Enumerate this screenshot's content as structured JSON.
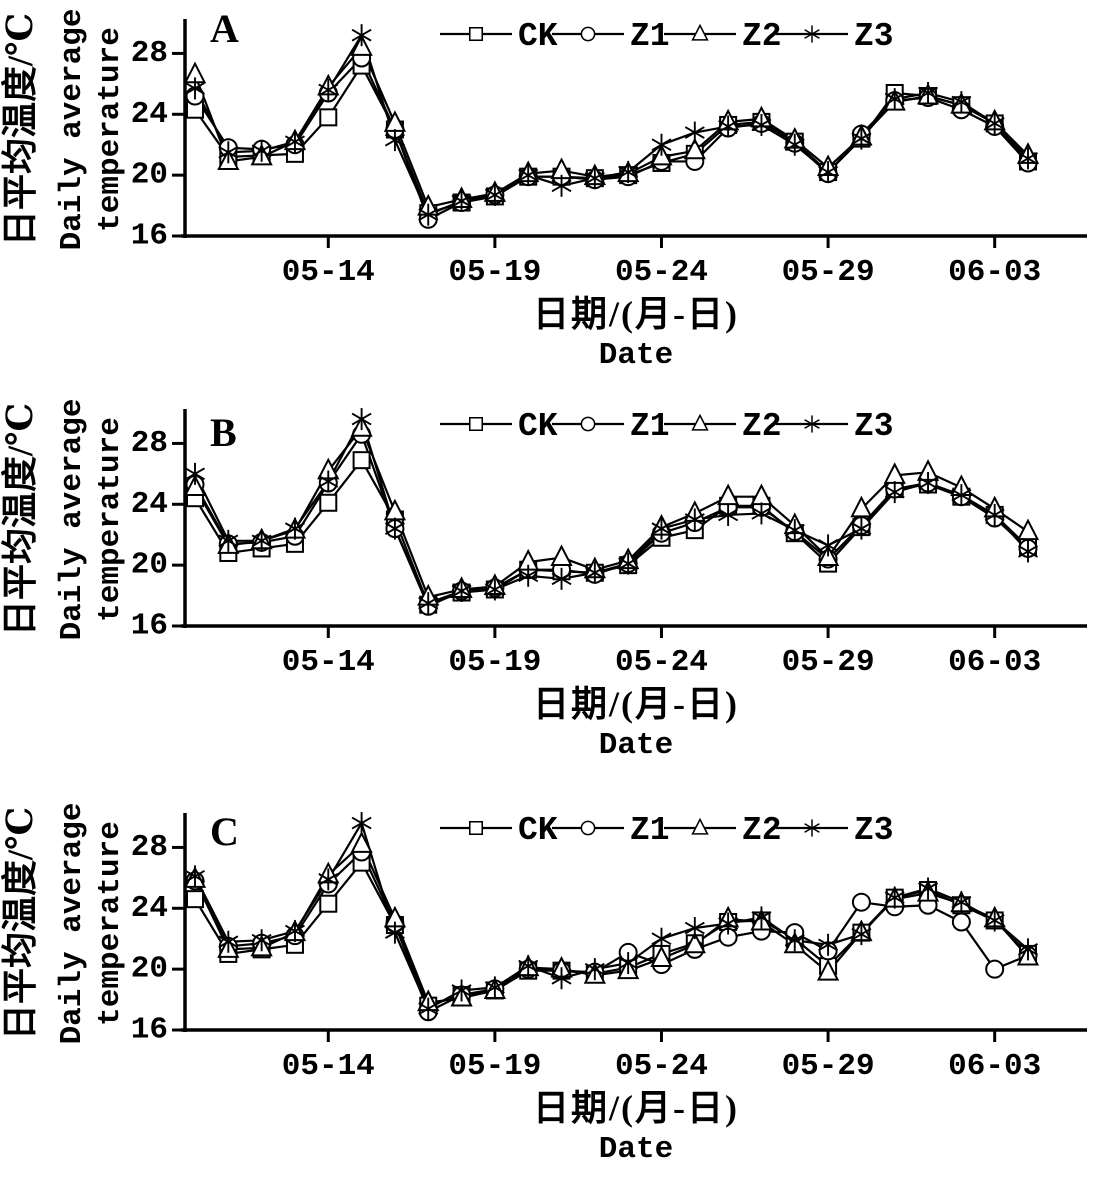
{
  "figure": {
    "background": "#ffffff",
    "ink_color": "#000000",
    "panel_labels": [
      "A",
      "B",
      "C"
    ],
    "y_axis_label": {
      "cn": "日平均温度/℃",
      "en_line1": "Daily average",
      "en_line2": "temperature"
    },
    "x_axis_label": {
      "cn": "日期/(月-日)",
      "en": "Date"
    },
    "y_ticks": [
      16,
      20,
      24,
      28
    ],
    "x_tick_labels": [
      "05-14",
      "05-19",
      "05-24",
      "05-29",
      "06-03"
    ],
    "legend": [
      {
        "label": "CK",
        "marker": "square"
      },
      {
        "label": "Z1",
        "marker": "circle"
      },
      {
        "label": "Z2",
        "marker": "triangle"
      },
      {
        "label": "Z3",
        "marker": "star"
      }
    ]
  },
  "chart_data": [
    {
      "id": "panel-A",
      "panel_label": "A",
      "type": "line",
      "title": "",
      "xlabel_cn": "日期/(月-日)",
      "xlabel_en": "Date",
      "ylabel_cn": "日平均温度/℃",
      "ylabel_en": "Daily average temperature",
      "ylim": [
        16,
        30
      ],
      "y_ticks": [
        16,
        20,
        24,
        28
      ],
      "x": [
        "05-10",
        "05-11",
        "05-12",
        "05-13",
        "05-14",
        "05-15",
        "05-16",
        "05-17",
        "05-18",
        "05-19",
        "05-20",
        "05-21",
        "05-22",
        "05-23",
        "05-24",
        "05-25",
        "05-26",
        "05-27",
        "05-28",
        "05-29",
        "05-30",
        "05-31",
        "06-01",
        "06-02",
        "06-03",
        "06-04"
      ],
      "x_ticks_shown": [
        "05-14",
        "05-19",
        "05-24",
        "05-29",
        "06-03"
      ],
      "series": [
        {
          "name": "CK",
          "marker": "square",
          "values": [
            24.3,
            21.2,
            21.3,
            21.4,
            23.8,
            27.2,
            23.0,
            17.5,
            18.2,
            18.6,
            19.9,
            19.9,
            19.8,
            20.0,
            20.8,
            21.4,
            23.3,
            23.5,
            22.2,
            20.2,
            22.4,
            25.4,
            25.2,
            24.6,
            23.4,
            20.9
          ]
        },
        {
          "name": "Z1",
          "marker": "circle",
          "values": [
            25.2,
            21.8,
            21.7,
            22.0,
            25.4,
            27.7,
            23.0,
            17.1,
            18.2,
            18.7,
            19.9,
            19.9,
            19.7,
            19.9,
            20.9,
            20.9,
            23.1,
            23.4,
            22.1,
            20.1,
            22.7,
            24.9,
            25.1,
            24.3,
            23.2,
            20.8
          ]
        },
        {
          "name": "Z2",
          "marker": "triangle",
          "values": [
            26.6,
            20.9,
            21.2,
            22.2,
            25.8,
            28.4,
            23.4,
            17.9,
            18.4,
            18.8,
            20.1,
            20.3,
            19.9,
            20.1,
            21.2,
            21.6,
            23.5,
            23.7,
            22.3,
            20.5,
            22.5,
            24.8,
            25.2,
            24.6,
            23.5,
            21.3
          ]
        },
        {
          "name": "Z3",
          "marker": "star",
          "values": [
            25.7,
            21.5,
            21.6,
            22.2,
            25.6,
            29.2,
            22.3,
            17.4,
            18.3,
            18.7,
            20.0,
            19.3,
            19.8,
            20.2,
            22.0,
            22.8,
            23.2,
            23.3,
            22.0,
            20.2,
            22.4,
            25.0,
            25.4,
            24.8,
            23.4,
            21.1
          ]
        }
      ]
    },
    {
      "id": "panel-B",
      "panel_label": "B",
      "type": "line",
      "title": "",
      "xlabel_cn": "日期/(月-日)",
      "xlabel_en": "Date",
      "ylabel_cn": "日平均温度/℃",
      "ylabel_en": "Daily average temperature",
      "ylim": [
        16,
        30
      ],
      "y_ticks": [
        16,
        20,
        24,
        28
      ],
      "x": [
        "05-10",
        "05-11",
        "05-12",
        "05-13",
        "05-14",
        "05-15",
        "05-16",
        "05-17",
        "05-18",
        "05-19",
        "05-20",
        "05-21",
        "05-22",
        "05-23",
        "05-24",
        "05-25",
        "05-26",
        "05-27",
        "05-28",
        "05-29",
        "05-30",
        "05-31",
        "06-01",
        "06-02",
        "06-03",
        "06-04"
      ],
      "x_ticks_shown": [
        "05-14",
        "05-19",
        "05-24",
        "05-29",
        "06-03"
      ],
      "series": [
        {
          "name": "CK",
          "marker": "square",
          "values": [
            24.4,
            20.8,
            21.1,
            21.4,
            24.1,
            26.9,
            23.0,
            17.4,
            18.2,
            18.4,
            19.7,
            19.6,
            19.5,
            20.0,
            21.8,
            22.3,
            23.9,
            23.9,
            22.1,
            20.1,
            22.5,
            25.0,
            25.3,
            24.5,
            23.3,
            21.2
          ]
        },
        {
          "name": "Z1",
          "marker": "circle",
          "values": [
            25.3,
            21.4,
            21.5,
            21.9,
            25.4,
            28.6,
            22.4,
            17.3,
            18.3,
            18.5,
            19.7,
            19.7,
            19.4,
            20.1,
            22.1,
            22.8,
            23.8,
            23.8,
            22.2,
            20.4,
            22.6,
            25.0,
            25.4,
            24.5,
            23.1,
            21.1
          ]
        },
        {
          "name": "Z2",
          "marker": "triangle",
          "values": [
            25.1,
            21.3,
            21.6,
            22.3,
            26.2,
            29.0,
            23.5,
            17.9,
            18.4,
            18.6,
            20.2,
            20.5,
            19.7,
            20.3,
            22.5,
            23.4,
            24.5,
            24.5,
            22.6,
            20.5,
            23.7,
            25.9,
            26.1,
            25.1,
            23.7,
            22.2
          ]
        },
        {
          "name": "Z3",
          "marker": "star",
          "values": [
            26.0,
            21.6,
            21.6,
            22.4,
            25.5,
            29.6,
            22.4,
            17.5,
            18.3,
            18.4,
            19.3,
            19.1,
            19.5,
            20.1,
            22.4,
            23.0,
            23.3,
            23.4,
            22.3,
            21.3,
            22.4,
            24.8,
            25.4,
            24.6,
            23.3,
            20.9
          ]
        }
      ]
    },
    {
      "id": "panel-C",
      "panel_label": "C",
      "type": "line",
      "title": "",
      "xlabel_cn": "日期/(月-日)",
      "xlabel_en": "Date",
      "ylabel_cn": "日平均温度/℃",
      "ylabel_en": "Daily average temperature",
      "ylim": [
        16,
        30
      ],
      "y_ticks": [
        16,
        20,
        24,
        28
      ],
      "x": [
        "05-10",
        "05-11",
        "05-12",
        "05-13",
        "05-14",
        "05-15",
        "05-16",
        "05-17",
        "05-18",
        "05-19",
        "05-20",
        "05-21",
        "05-22",
        "05-23",
        "05-24",
        "05-25",
        "05-26",
        "05-27",
        "05-28",
        "05-29",
        "05-30",
        "05-31",
        "06-01",
        "06-02",
        "06-03",
        "06-04"
      ],
      "x_ticks_shown": [
        "05-14",
        "05-19",
        "05-24",
        "05-29",
        "06-03"
      ],
      "series": [
        {
          "name": "CK",
          "marker": "square",
          "values": [
            24.6,
            21.0,
            21.3,
            21.6,
            24.3,
            27.0,
            22.9,
            17.6,
            18.3,
            18.6,
            19.9,
            19.9,
            19.7,
            20.1,
            21.0,
            21.7,
            23.1,
            23.2,
            22.0,
            20.2,
            22.4,
            24.7,
            25.2,
            24.2,
            23.2,
            21.0
          ]
        },
        {
          "name": "Z1",
          "marker": "circle",
          "values": [
            25.8,
            21.5,
            21.7,
            22.2,
            25.6,
            27.7,
            23.0,
            17.2,
            18.3,
            18.7,
            20.0,
            19.9,
            19.8,
            21.1,
            20.3,
            21.3,
            22.1,
            22.5,
            22.4,
            21.2,
            24.4,
            24.1,
            24.2,
            23.1,
            20.0,
            20.9
          ]
        },
        {
          "name": "Z2",
          "marker": "triangle",
          "values": [
            25.9,
            21.3,
            21.4,
            22.4,
            26.2,
            28.2,
            23.3,
            17.8,
            18.1,
            18.6,
            20.1,
            20.0,
            19.6,
            19.9,
            20.7,
            21.6,
            23.3,
            23.1,
            21.6,
            19.8,
            22.4,
            24.6,
            25.0,
            24.3,
            23.3,
            20.8
          ]
        },
        {
          "name": "Z3",
          "marker": "star",
          "values": [
            26.1,
            21.8,
            21.9,
            22.5,
            25.9,
            29.6,
            22.4,
            17.4,
            18.6,
            18.8,
            20.2,
            19.4,
            20.0,
            20.4,
            22.0,
            22.7,
            23.0,
            23.4,
            21.9,
            21.6,
            22.3,
            24.7,
            25.3,
            24.4,
            23.2,
            21.3
          ]
        }
      ]
    }
  ]
}
